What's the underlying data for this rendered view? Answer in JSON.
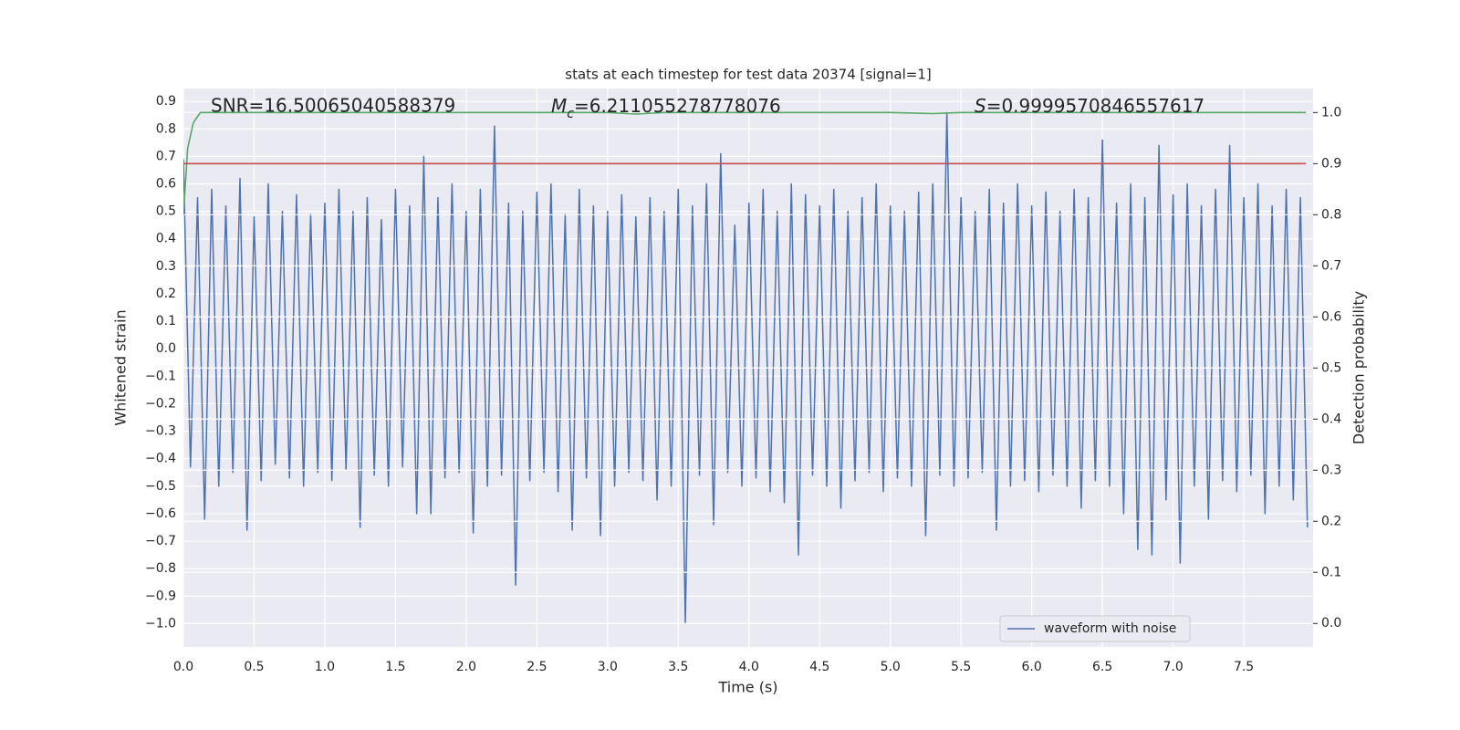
{
  "chart_data": {
    "type": "line",
    "title": "stats at each timestep for test data 20374 [signal=1]",
    "xlabel": "Time (s)",
    "ylabel": "Whitened strain",
    "y2label": "Detection probability",
    "grid": true,
    "legend": "lower right",
    "background": "#eaeaf2",
    "xlim": [
      0,
      7.99
    ],
    "ylim": [
      -1.085,
      0.947
    ],
    "y2lim": [
      -0.046,
      1.047
    ],
    "xticks": [
      {
        "value": 0,
        "label": "0.0"
      },
      {
        "value": 0.5,
        "label": "0.5"
      },
      {
        "value": 1,
        "label": "1.0"
      },
      {
        "value": 1.5,
        "label": "1.5"
      },
      {
        "value": 2,
        "label": "2.0"
      },
      {
        "value": 2.5,
        "label": "2.5"
      },
      {
        "value": 3,
        "label": "3.0"
      },
      {
        "value": 3.5,
        "label": "3.5"
      },
      {
        "value": 4,
        "label": "4.0"
      },
      {
        "value": 4.5,
        "label": "4.5"
      },
      {
        "value": 5,
        "label": "5.0"
      },
      {
        "value": 5.5,
        "label": "5.5"
      },
      {
        "value": 6,
        "label": "6.0"
      },
      {
        "value": 6.5,
        "label": "6.5"
      },
      {
        "value": 7,
        "label": "7.0"
      },
      {
        "value": 7.5,
        "label": "7.5"
      }
    ],
    "yticks": [
      {
        "value": 0.9,
        "label": "0.9"
      },
      {
        "value": 0.8,
        "label": "0.8"
      },
      {
        "value": 0.7,
        "label": "0.7"
      },
      {
        "value": 0.6,
        "label": "0.6"
      },
      {
        "value": 0.5,
        "label": "0.5"
      },
      {
        "value": 0.4,
        "label": "0.4"
      },
      {
        "value": 0.3,
        "label": "0.3"
      },
      {
        "value": 0.2,
        "label": "0.2"
      },
      {
        "value": 0.1,
        "label": "0.1"
      },
      {
        "value": 0,
        "label": "0.0"
      },
      {
        "value": -0.1,
        "label": "−0.1"
      },
      {
        "value": -0.2,
        "label": "−0.2"
      },
      {
        "value": -0.3,
        "label": "−0.3"
      },
      {
        "value": -0.4,
        "label": "−0.4"
      },
      {
        "value": -0.5,
        "label": "−0.5"
      },
      {
        "value": -0.6,
        "label": "−0.6"
      },
      {
        "value": -0.7,
        "label": "−0.7"
      },
      {
        "value": -0.8,
        "label": "−0.8"
      },
      {
        "value": -0.9,
        "label": "−0.9"
      },
      {
        "value": -1,
        "label": "−1.0"
      }
    ],
    "y2ticks": [
      {
        "value": 1,
        "label": "1.0"
      },
      {
        "value": 0.9,
        "label": "0.9"
      },
      {
        "value": 0.8,
        "label": "0.8"
      },
      {
        "value": 0.7,
        "label": "0.7"
      },
      {
        "value": 0.6,
        "label": "0.6"
      },
      {
        "value": 0.5,
        "label": "0.5"
      },
      {
        "value": 0.4,
        "label": "0.4"
      },
      {
        "value": 0.3,
        "label": "0.3"
      },
      {
        "value": 0.2,
        "label": "0.2"
      },
      {
        "value": 0.1,
        "label": "0.1"
      },
      {
        "value": 0,
        "label": "0.0"
      }
    ],
    "annotations": [
      {
        "text": "SNR=16.50065040588379"
      },
      {
        "symbol": "M",
        "subscript": "c",
        "text": "=6.211055278778076"
      },
      {
        "symbol": "S",
        "text": "=0.9999570846557617"
      }
    ],
    "series": [
      {
        "name": "waveform with noise",
        "color": "#4c72b0",
        "x": [
          0,
          0.05,
          0.1,
          0.15,
          0.2,
          0.25,
          0.3,
          0.35,
          0.4,
          0.45,
          0.5,
          0.55,
          0.6,
          0.65,
          0.7,
          0.75,
          0.8,
          0.85,
          0.9,
          0.95,
          1.0,
          1.05,
          1.1,
          1.15,
          1.2,
          1.25,
          1.3,
          1.35,
          1.4,
          1.45,
          1.5,
          1.55,
          1.6,
          1.65,
          1.7,
          1.75,
          1.8,
          1.85,
          1.9,
          1.95,
          2.0,
          2.05,
          2.1,
          2.15,
          2.2,
          2.25,
          2.3,
          2.35,
          2.4,
          2.45,
          2.5,
          2.55,
          2.6,
          2.65,
          2.7,
          2.75,
          2.8,
          2.85,
          2.9,
          2.95,
          3.0,
          3.05,
          3.1,
          3.15,
          3.2,
          3.25,
          3.3,
          3.35,
          3.4,
          3.45,
          3.5,
          3.55,
          3.6,
          3.65,
          3.7,
          3.75,
          3.8,
          3.85,
          3.9,
          3.95,
          4.0,
          4.05,
          4.1,
          4.15,
          4.2,
          4.25,
          4.3,
          4.35,
          4.4,
          4.45,
          4.5,
          4.55,
          4.6,
          4.65,
          4.7,
          4.75,
          4.8,
          4.85,
          4.9,
          4.95,
          5.0,
          5.05,
          5.1,
          5.15,
          5.2,
          5.25,
          5.3,
          5.35,
          5.4,
          5.45,
          5.5,
          5.55,
          5.6,
          5.65,
          5.7,
          5.75,
          5.8,
          5.85,
          5.9,
          5.95,
          6.0,
          6.05,
          6.1,
          6.15,
          6.2,
          6.25,
          6.3,
          6.35,
          6.4,
          6.45,
          6.5,
          6.55,
          6.6,
          6.65,
          6.7,
          6.75,
          6.8,
          6.85,
          6.9,
          6.95,
          7.0,
          7.05,
          7.1,
          7.15,
          7.2,
          7.25,
          7.3,
          7.35,
          7.4,
          7.45,
          7.5,
          7.55,
          7.6,
          7.65,
          7.7,
          7.75,
          7.8,
          7.85,
          7.9,
          7.95
        ],
        "values": [
          0.69,
          -0.43,
          0.55,
          -0.62,
          0.58,
          -0.5,
          0.52,
          -0.45,
          0.62,
          -0.66,
          0.48,
          -0.48,
          0.6,
          -0.42,
          0.5,
          -0.47,
          0.56,
          -0.5,
          0.49,
          -0.45,
          0.53,
          -0.48,
          0.58,
          -0.44,
          0.5,
          -0.65,
          0.55,
          -0.46,
          0.47,
          -0.5,
          0.58,
          -0.43,
          0.52,
          -0.6,
          0.7,
          -0.6,
          0.55,
          -0.47,
          0.6,
          -0.45,
          0.5,
          -0.67,
          0.58,
          -0.5,
          0.81,
          -0.46,
          0.53,
          -0.86,
          0.5,
          -0.48,
          0.57,
          -0.45,
          0.6,
          -0.52,
          0.49,
          -0.66,
          0.58,
          -0.47,
          0.52,
          -0.68,
          0.5,
          -0.5,
          0.56,
          -0.45,
          0.48,
          -0.48,
          0.55,
          -0.55,
          0.5,
          -0.5,
          0.58,
          -1.0,
          0.52,
          -0.46,
          0.6,
          -0.64,
          0.71,
          -0.45,
          0.45,
          -0.5,
          0.53,
          -0.47,
          0.58,
          -0.52,
          0.5,
          -0.56,
          0.6,
          -0.75,
          0.56,
          -0.46,
          0.52,
          -0.5,
          0.58,
          -0.58,
          0.5,
          -0.48,
          0.55,
          -0.45,
          0.6,
          -0.52,
          0.52,
          -0.47,
          0.5,
          -0.5,
          0.57,
          -0.68,
          0.6,
          -0.46,
          0.86,
          -0.5,
          0.55,
          -0.47,
          0.5,
          -0.45,
          0.58,
          -0.66,
          0.53,
          -0.5,
          0.6,
          -0.48,
          0.52,
          -0.52,
          0.57,
          -0.46,
          0.5,
          -0.5,
          0.58,
          -0.58,
          0.55,
          -0.48,
          0.76,
          -0.5,
          0.53,
          -0.6,
          0.6,
          -0.73,
          0.55,
          -0.75,
          0.74,
          -0.55,
          0.56,
          -0.78,
          0.6,
          -0.5,
          0.52,
          -0.62,
          0.58,
          -0.48,
          0.74,
          -0.52,
          0.55,
          -0.46,
          0.6,
          -0.6,
          0.52,
          -0.5,
          0.58,
          -0.55,
          0.55,
          -0.65
        ]
      },
      {
        "color": "#55a868",
        "axis": "y2",
        "x": [
          0,
          0.03,
          0.07,
          0.12,
          0.5,
          1.0,
          2.0,
          3.0,
          3.2,
          3.4,
          4.0,
          5.0,
          5.3,
          5.5,
          6.0,
          7.0,
          7.94
        ],
        "values": [
          0.8,
          0.93,
          0.98,
          1.0,
          1.0,
          1.0,
          1.0,
          1.0,
          0.997,
          1.0,
          1.0,
          1.0,
          0.998,
          1.0,
          1.0,
          1.0,
          1.0
        ]
      },
      {
        "color": "#c44e52",
        "axis": "y2",
        "x": [
          0,
          7.94
        ],
        "values": [
          0.9,
          0.9
        ]
      }
    ]
  }
}
